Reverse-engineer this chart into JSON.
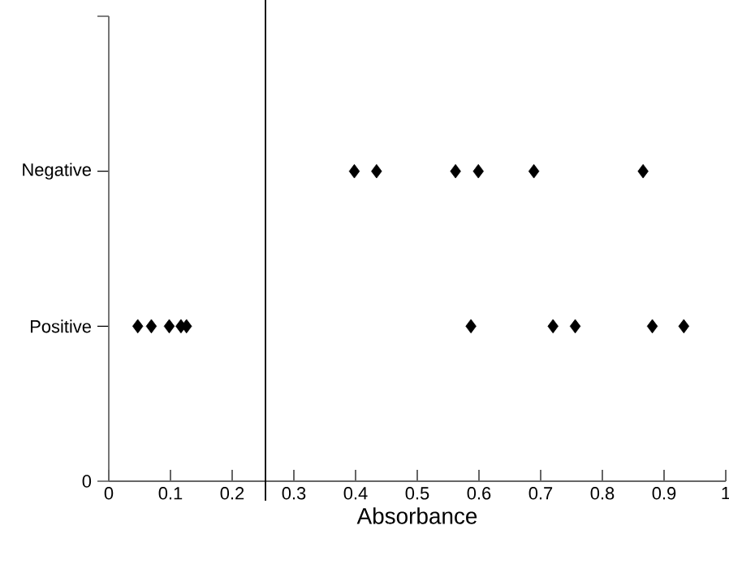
{
  "chart_data": {
    "type": "scatter",
    "xlabel": "Absorbance",
    "orientation": "horizontal",
    "categories": [
      null,
      "Negative",
      "Positive",
      "0"
    ],
    "series": [
      {
        "color": "#000000",
        "x": [
          "Negative",
          "Negative",
          "Negative",
          "Negative",
          "Negative",
          "Negative"
        ],
        "values": [
          0.398,
          0.434,
          0.562,
          0.599,
          0.689,
          0.866
        ]
      },
      {
        "color": "#000000",
        "x": [
          "Positive",
          "Positive",
          "Positive",
          "Positive",
          "Positive",
          "Positive",
          "Positive",
          "Positive",
          "Positive",
          "Positive"
        ],
        "values": [
          0.047,
          0.069,
          0.098,
          0.117,
          0.126,
          0.587,
          0.72,
          0.756,
          0.881,
          0.932
        ]
      }
    ],
    "marker": "diamond",
    "xlim": [
      0,
      1
    ],
    "xticks": [
      0,
      0.1,
      0.2,
      0.3,
      0.4,
      0.5,
      0.6,
      0.7,
      0.8,
      0.9,
      1
    ],
    "ref_lines": [
      {
        "axis": "x",
        "value": 0.254,
        "color": "#000000"
      }
    ],
    "grid": false
  }
}
